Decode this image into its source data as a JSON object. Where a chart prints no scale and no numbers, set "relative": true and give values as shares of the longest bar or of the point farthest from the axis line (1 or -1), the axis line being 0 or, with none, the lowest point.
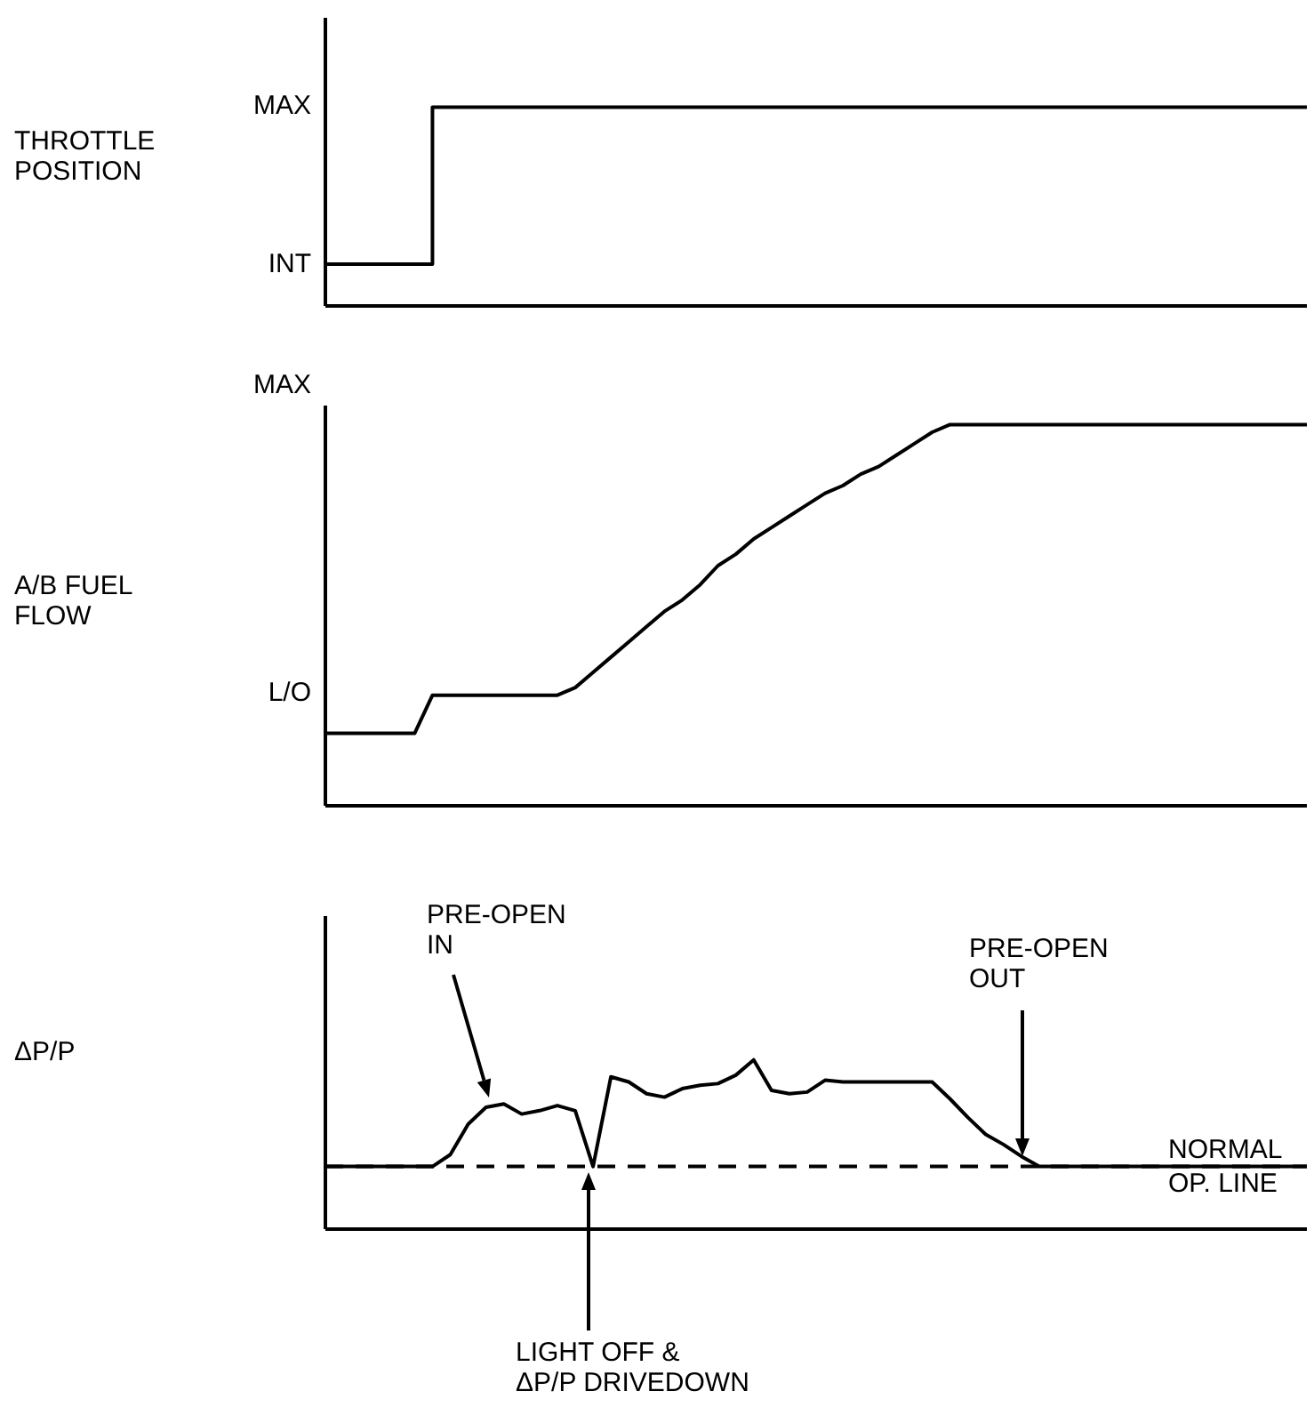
{
  "chart_data": [
    {
      "type": "step",
      "ylabel": "THROTTLE\nPOSITION",
      "categories": [
        null,
        null,
        null,
        null,
        null,
        null,
        null,
        null,
        null,
        null,
        null,
        null,
        null,
        null,
        null,
        null,
        null,
        null,
        null,
        null,
        null,
        null,
        null,
        null,
        null,
        null,
        null,
        null,
        null,
        null,
        null,
        null,
        null,
        null,
        null,
        null,
        null,
        null,
        null,
        null,
        null,
        null,
        null,
        null,
        null,
        null,
        null,
        null,
        null,
        null,
        null,
        null,
        null,
        null,
        null,
        null
      ],
      "relative": true,
      "grid": false,
      "legend": false,
      "annotations": [
        "MAX",
        "INT"
      ],
      "series": [
        {
          "color": "#000000",
          "values": [
            0.21,
            0.21,
            0.21,
            0.21,
            0.21,
            0.21,
            1,
            1,
            1,
            1,
            1,
            1,
            1,
            1,
            1,
            1,
            1,
            1,
            1,
            1,
            1,
            1,
            1,
            1,
            1,
            1,
            1,
            1,
            1,
            1,
            1,
            1,
            1,
            1,
            1,
            1,
            1,
            1,
            1,
            1,
            1,
            1,
            1,
            1,
            1,
            1,
            1,
            1,
            1,
            1,
            1,
            1,
            1,
            1,
            1,
            1
          ]
        }
      ]
    },
    {
      "type": "line",
      "ylabel": "A/B FUEL\nFLOW",
      "categories": [
        null,
        null,
        null,
        null,
        null,
        null,
        null,
        null,
        null,
        null,
        null,
        null,
        null,
        null,
        null,
        null,
        null,
        null,
        null,
        null,
        null,
        null,
        null,
        null,
        null,
        null,
        null,
        null,
        null,
        null,
        null,
        null,
        null,
        null,
        null,
        null,
        null,
        null,
        null,
        null,
        null,
        null,
        null,
        null,
        null,
        null,
        null,
        null,
        null,
        null,
        null,
        null,
        null,
        null,
        null,
        null
      ],
      "relative": true,
      "grid": false,
      "legend": false,
      "annotations": [
        "MAX",
        "L/O"
      ],
      "series": [
        {
          "color": "#000000",
          "values": [
            0.19,
            0.19,
            0.19,
            0.19,
            0.19,
            0.19,
            0.29,
            0.29,
            0.29,
            0.29,
            0.29,
            0.29,
            0.29,
            0.29,
            0.31,
            0.35,
            0.39,
            0.43,
            0.47,
            0.51,
            0.54,
            0.58,
            0.63,
            0.66,
            0.7,
            0.73,
            0.76,
            0.79,
            0.82,
            0.84,
            0.87,
            0.89,
            0.92,
            0.95,
            0.98,
            1,
            1,
            1,
            1,
            1,
            1,
            1,
            1,
            1,
            1,
            1,
            1,
            1,
            1,
            1,
            1,
            1,
            1,
            1,
            1,
            1
          ]
        }
      ]
    },
    {
      "type": "line",
      "ylabel": "ΔP/P",
      "relative": true,
      "categories": [
        null,
        null,
        null,
        null,
        null,
        null,
        null,
        null,
        null,
        null,
        null,
        null,
        null,
        null,
        null,
        null,
        null,
        null,
        null,
        null,
        null,
        null,
        null,
        null,
        null,
        null,
        null,
        null,
        null,
        null,
        null,
        null,
        null,
        null,
        null,
        null,
        null,
        null,
        null,
        null,
        null,
        null,
        null,
        null,
        null,
        null,
        null,
        null,
        null,
        null,
        null,
        null,
        null,
        null,
        null,
        null
      ],
      "grid": false,
      "legend": false,
      "annotations": [
        "PRE-OPEN\nIN",
        "PRE-OPEN\nOUT",
        "LIGHT OFF &\nΔP/P DRIVEDOWN"
      ],
      "series": [
        {
          "name": "NORMAL\nOP. LINE",
          "color": "#000000",
          "line_style": "dashed",
          "values": [
            0.37,
            0.37,
            0.37,
            0.37,
            0.37,
            0.37,
            0.37,
            0.37,
            0.37,
            0.37,
            0.37,
            0.37,
            0.37,
            0.37,
            0.37,
            0.37,
            0.37,
            0.37,
            0.37,
            0.37,
            0.37,
            0.37,
            0.37,
            0.37,
            0.37,
            0.37,
            0.37,
            0.37,
            0.37,
            0.37,
            0.37,
            0.37,
            0.37,
            0.37,
            0.37,
            0.37,
            0.37,
            0.37,
            0.37,
            0.37,
            0.37,
            0.37,
            0.37,
            0.37,
            0.37,
            0.37,
            0.37,
            0.37,
            0.37,
            0.37,
            0.37,
            0.37,
            0.37,
            0.37,
            0.37,
            0.37
          ]
        },
        {
          "color": "#000000",
          "values": [
            0.37,
            0.37,
            0.37,
            0.37,
            0.37,
            0.37,
            0.37,
            0.44,
            0.62,
            0.72,
            0.74,
            0.68,
            0.7,
            0.73,
            0.7,
            0.37,
            0.9,
            0.87,
            0.8,
            0.78,
            0.83,
            0.85,
            0.86,
            0.91,
            1,
            0.82,
            0.8,
            0.81,
            0.88,
            0.87,
            0.87,
            0.87,
            0.87,
            0.87,
            0.87,
            0.77,
            0.66,
            0.56,
            0.5,
            0.43,
            0.37,
            0.37,
            0.37,
            0.37,
            0.37,
            0.37,
            0.37,
            0.37,
            0.37,
            0.37,
            0.37,
            0.37,
            0.37,
            0.37,
            0.37,
            0.37
          ]
        }
      ]
    }
  ]
}
